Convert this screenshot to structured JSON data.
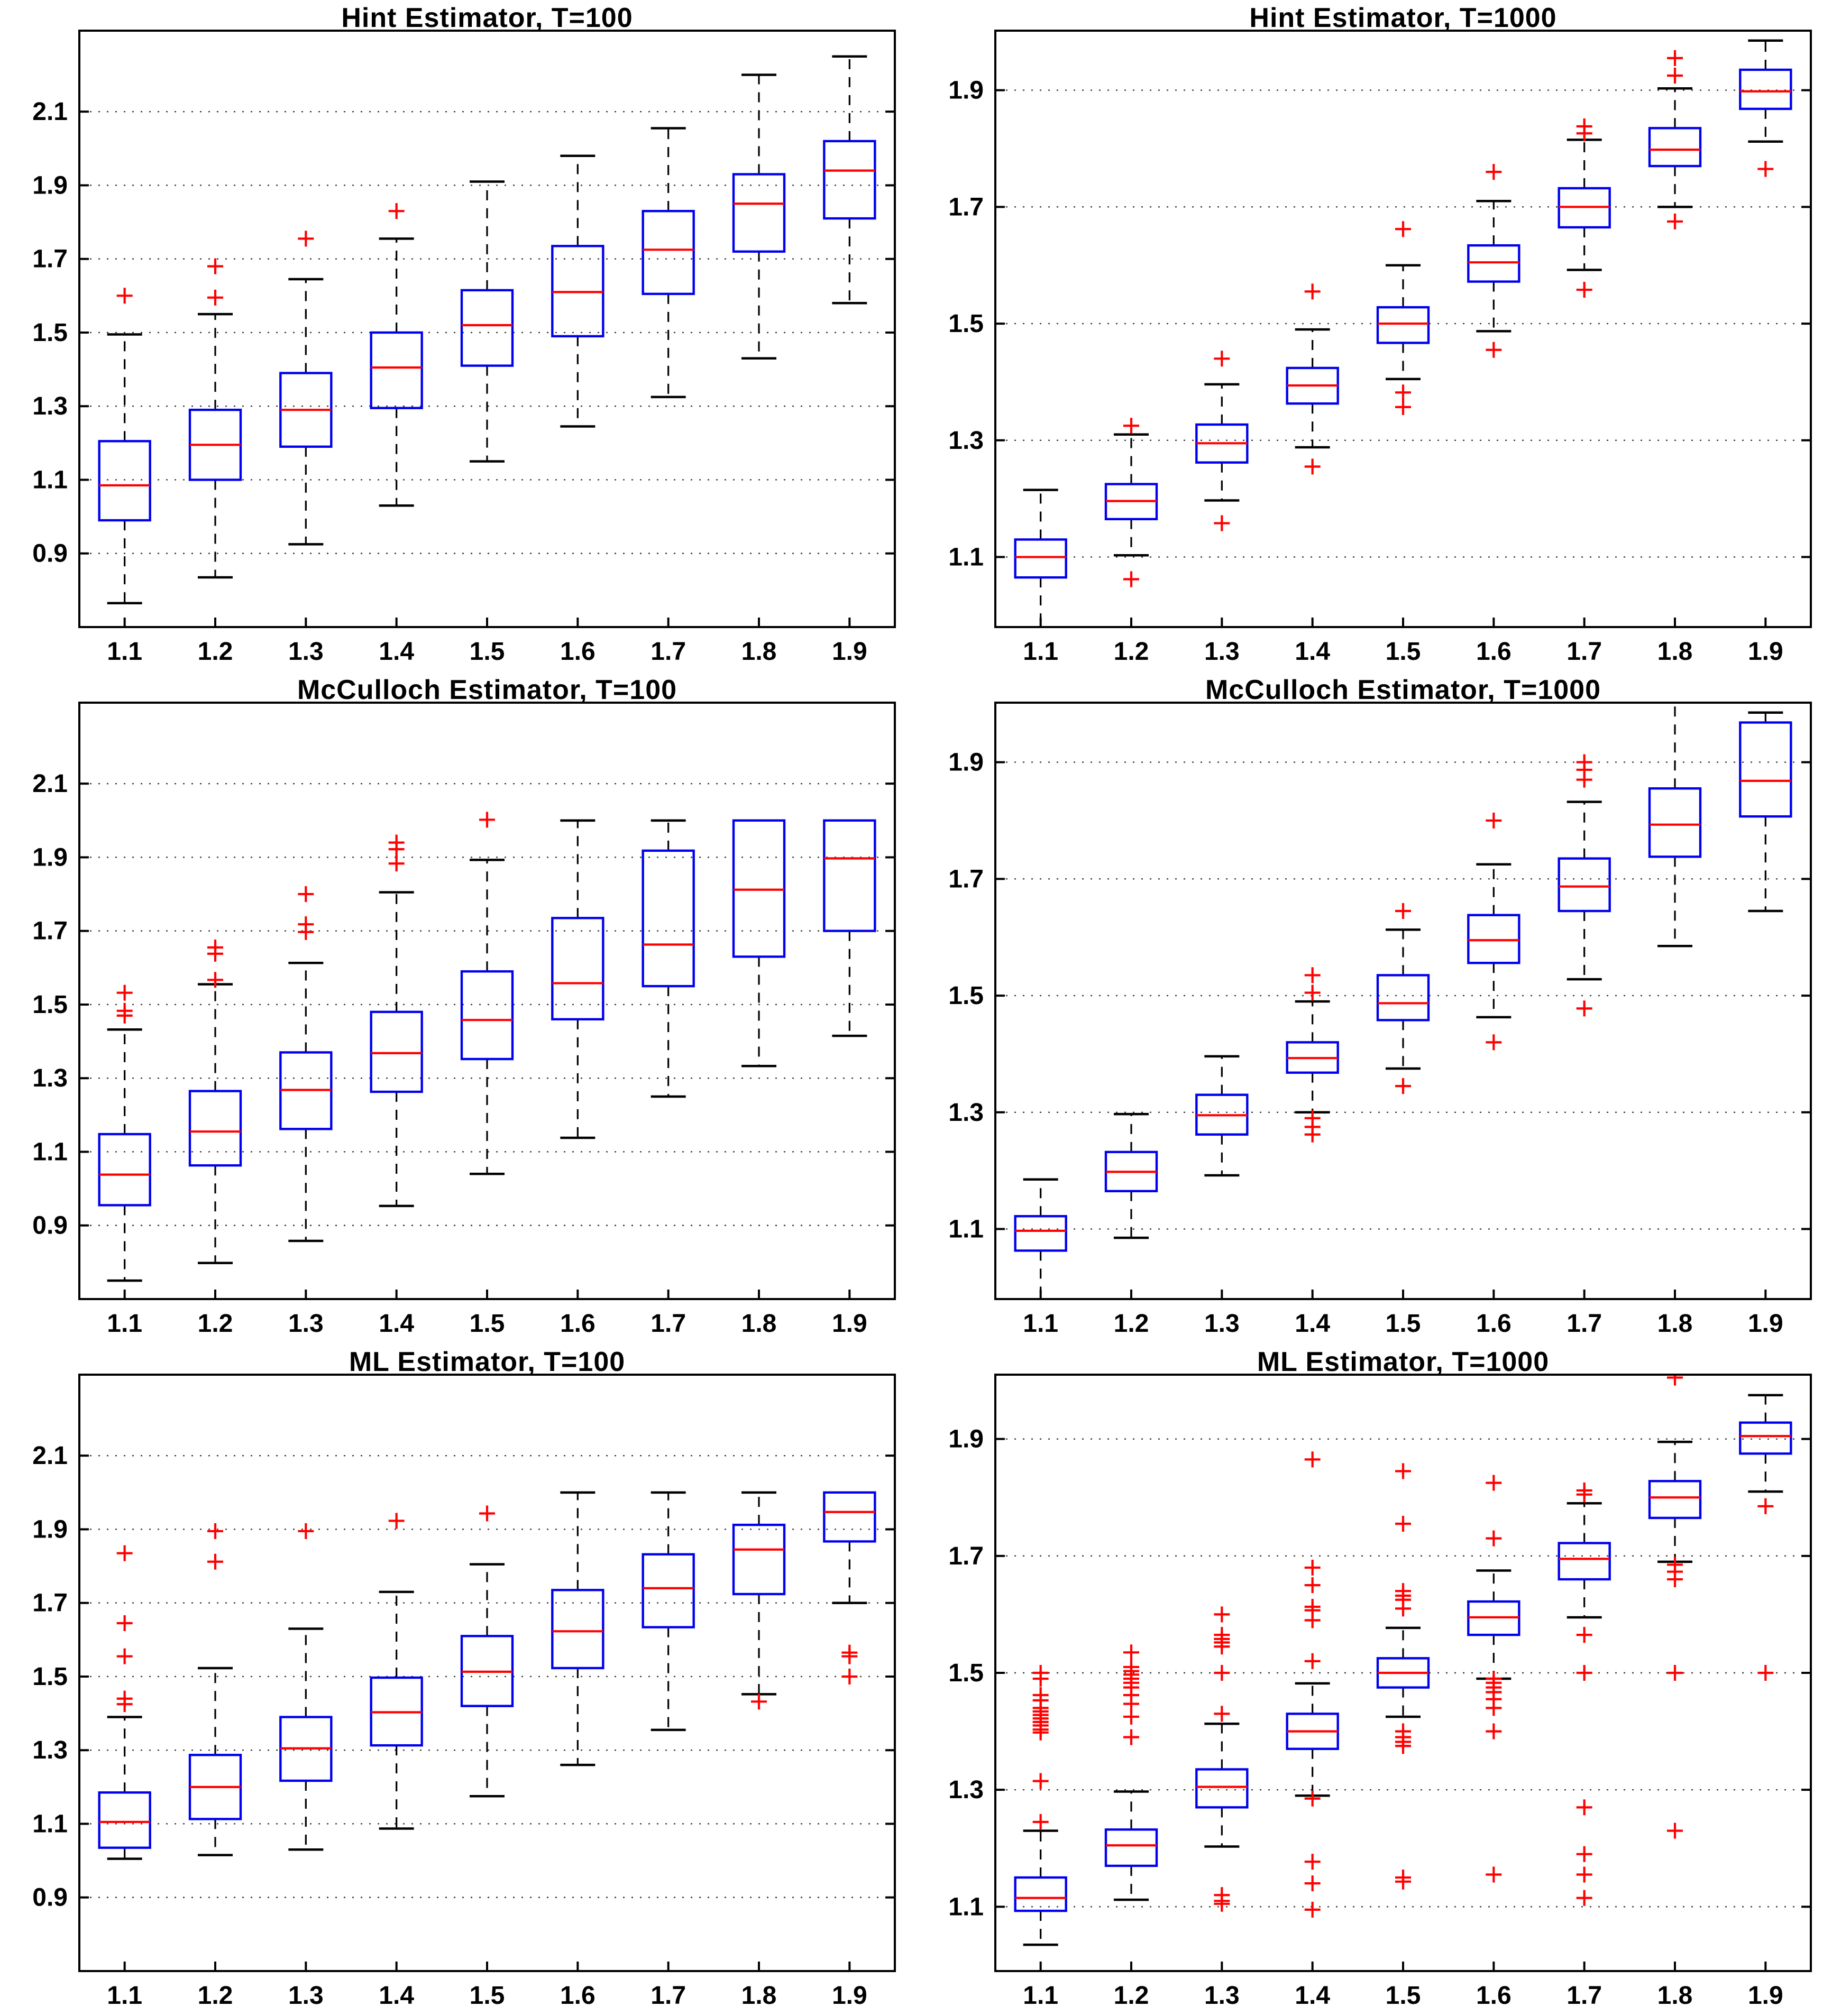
{
  "page": {
    "background": "#ffffff"
  },
  "style": {
    "box_color": "#0000ee",
    "median_color": "#ff0000",
    "outlier_color": "#ff0000",
    "outlier_marker": "+",
    "whisker_color": "#000000",
    "grid_color": "#3a3a3a",
    "frame_color": "#000000",
    "text_color": "#000000"
  },
  "chart_data": [
    {
      "type": "boxplot",
      "title": "Hint Estimator, T=100",
      "xlabel": "",
      "ylabel": "",
      "legend": "none",
      "grid": "horizontal-dotted",
      "x_categories": [
        "1.1",
        "1.2",
        "1.3",
        "1.4",
        "1.5",
        "1.6",
        "1.7",
        "1.8",
        "1.9"
      ],
      "ylim": [
        0.7,
        2.32
      ],
      "yticks": [
        0.9,
        1.1,
        1.3,
        1.5,
        1.7,
        1.9,
        2.1
      ],
      "ytick_labels": [
        "0.9",
        "1.1",
        "1.3",
        "1.5",
        "1.7",
        "1.9",
        "2.1"
      ],
      "boxes": [
        {
          "x": "1.1",
          "whisker_low": 0.765,
          "q1": 0.99,
          "median": 1.085,
          "q3": 1.205,
          "whisker_high": 1.495,
          "outliers": [
            1.6
          ]
        },
        {
          "x": "1.2",
          "whisker_low": 0.835,
          "q1": 1.1,
          "median": 1.195,
          "q3": 1.29,
          "whisker_high": 1.55,
          "outliers": [
            1.595,
            1.68
          ]
        },
        {
          "x": "1.3",
          "whisker_low": 0.925,
          "q1": 1.19,
          "median": 1.29,
          "q3": 1.39,
          "whisker_high": 1.645,
          "outliers": [
            1.755
          ]
        },
        {
          "x": "1.4",
          "whisker_low": 1.03,
          "q1": 1.295,
          "median": 1.405,
          "q3": 1.5,
          "whisker_high": 1.755,
          "outliers": [
            1.83
          ]
        },
        {
          "x": "1.5",
          "whisker_low": 1.15,
          "q1": 1.41,
          "median": 1.52,
          "q3": 1.615,
          "whisker_high": 1.91,
          "outliers": []
        },
        {
          "x": "1.6",
          "whisker_low": 1.245,
          "q1": 1.49,
          "median": 1.61,
          "q3": 1.735,
          "whisker_high": 1.98,
          "outliers": []
        },
        {
          "x": "1.7",
          "whisker_low": 1.325,
          "q1": 1.605,
          "median": 1.725,
          "q3": 1.83,
          "whisker_high": 2.055,
          "outliers": []
        },
        {
          "x": "1.8",
          "whisker_low": 1.43,
          "q1": 1.72,
          "median": 1.85,
          "q3": 1.93,
          "whisker_high": 2.2,
          "outliers": []
        },
        {
          "x": "1.9",
          "whisker_low": 1.58,
          "q1": 1.81,
          "median": 1.94,
          "q3": 2.02,
          "whisker_high": 2.25,
          "outliers": []
        }
      ]
    },
    {
      "type": "boxplot",
      "title": "Hint Estimator, T=1000",
      "xlabel": "",
      "ylabel": "",
      "legend": "none",
      "grid": "horizontal-dotted",
      "x_categories": [
        "1.1",
        "1.2",
        "1.3",
        "1.4",
        "1.5",
        "1.6",
        "1.7",
        "1.8",
        "1.9"
      ],
      "ylim": [
        0.98,
        2.002
      ],
      "yticks": [
        1.1,
        1.3,
        1.5,
        1.7,
        1.9
      ],
      "ytick_labels": [
        "1.1",
        "1.3",
        "1.5",
        "1.7",
        "1.9"
      ],
      "boxes": [
        {
          "x": "1.1",
          "whisker_low": 0.955,
          "q1": 1.065,
          "median": 1.1,
          "q3": 1.13,
          "whisker_high": 1.215,
          "outliers": []
        },
        {
          "x": "1.2",
          "whisker_low": 1.103,
          "q1": 1.165,
          "median": 1.196,
          "q3": 1.225,
          "whisker_high": 1.31,
          "outliers": [
            1.325,
            1.062
          ]
        },
        {
          "x": "1.3",
          "whisker_low": 1.197,
          "q1": 1.262,
          "median": 1.295,
          "q3": 1.327,
          "whisker_high": 1.396,
          "outliers": [
            1.44,
            1.158
          ]
        },
        {
          "x": "1.4",
          "whisker_low": 1.288,
          "q1": 1.363,
          "median": 1.394,
          "q3": 1.424,
          "whisker_high": 1.49,
          "outliers": [
            1.555,
            1.255
          ]
        },
        {
          "x": "1.5",
          "whisker_low": 1.405,
          "q1": 1.467,
          "median": 1.5,
          "q3": 1.528,
          "whisker_high": 1.6,
          "outliers": [
            1.662,
            1.382,
            1.357
          ]
        },
        {
          "x": "1.6",
          "whisker_low": 1.487,
          "q1": 1.572,
          "median": 1.605,
          "q3": 1.634,
          "whisker_high": 1.71,
          "outliers": [
            1.76,
            1.455
          ]
        },
        {
          "x": "1.7",
          "whisker_low": 1.592,
          "q1": 1.665,
          "median": 1.7,
          "q3": 1.732,
          "whisker_high": 1.815,
          "outliers": [
            1.838,
            1.826,
            1.558
          ]
        },
        {
          "x": "1.8",
          "whisker_low": 1.7,
          "q1": 1.77,
          "median": 1.798,
          "q3": 1.835,
          "whisker_high": 1.903,
          "outliers": [
            1.955,
            1.925,
            1.675
          ]
        },
        {
          "x": "1.9",
          "whisker_low": 1.812,
          "q1": 1.868,
          "median": 1.898,
          "q3": 1.935,
          "whisker_high": 1.985,
          "outliers": [
            1.765
          ]
        }
      ]
    },
    {
      "type": "boxplot",
      "title": "McCulloch Estimator, T=100",
      "xlabel": "",
      "ylabel": "",
      "legend": "none",
      "grid": "horizontal-dotted",
      "x_categories": [
        "1.1",
        "1.2",
        "1.3",
        "1.4",
        "1.5",
        "1.6",
        "1.7",
        "1.8",
        "1.9"
      ],
      "ylim": [
        0.7,
        2.32
      ],
      "yticks": [
        0.9,
        1.1,
        1.3,
        1.5,
        1.7,
        1.9,
        2.1
      ],
      "ytick_labels": [
        "0.9",
        "1.1",
        "1.3",
        "1.5",
        "1.7",
        "1.9",
        "2.1"
      ],
      "boxes": [
        {
          "x": "1.1",
          "whisker_low": 0.75,
          "q1": 0.955,
          "median": 1.038,
          "q3": 1.148,
          "whisker_high": 1.432,
          "outliers": [
            1.47,
            1.483,
            1.532
          ]
        },
        {
          "x": "1.2",
          "whisker_low": 0.798,
          "q1": 1.063,
          "median": 1.155,
          "q3": 1.265,
          "whisker_high": 1.555,
          "outliers": [
            1.567,
            1.638,
            1.655
          ]
        },
        {
          "x": "1.3",
          "whisker_low": 0.858,
          "q1": 1.162,
          "median": 1.268,
          "q3": 1.37,
          "whisker_high": 1.613,
          "outliers": [
            1.697,
            1.718,
            1.8
          ]
        },
        {
          "x": "1.4",
          "whisker_low": 0.953,
          "q1": 1.263,
          "median": 1.368,
          "q3": 1.48,
          "whisker_high": 1.805,
          "outliers": [
            1.883,
            1.922,
            1.94
          ]
        },
        {
          "x": "1.5",
          "whisker_low": 1.04,
          "q1": 1.352,
          "median": 1.458,
          "q3": 1.59,
          "whisker_high": 1.893,
          "outliers": [
            2.002
          ]
        },
        {
          "x": "1.6",
          "whisker_low": 1.138,
          "q1": 1.46,
          "median": 1.558,
          "q3": 1.735,
          "whisker_high": 2.0,
          "outliers": []
        },
        {
          "x": "1.7",
          "whisker_low": 1.25,
          "q1": 1.55,
          "median": 1.663,
          "q3": 1.918,
          "whisker_high": 2.0,
          "outliers": []
        },
        {
          "x": "1.8",
          "whisker_low": 1.333,
          "q1": 1.63,
          "median": 1.812,
          "q3": 2.0,
          "whisker_high": 2.0,
          "outliers": []
        },
        {
          "x": "1.9",
          "whisker_low": 1.415,
          "q1": 1.7,
          "median": 1.897,
          "q3": 2.0,
          "whisker_high": 2.0,
          "outliers": []
        }
      ]
    },
    {
      "type": "boxplot",
      "title": "McCulloch Estimator, T=1000",
      "xlabel": "",
      "ylabel": "",
      "legend": "none",
      "grid": "horizontal-dotted",
      "x_categories": [
        "1.1",
        "1.2",
        "1.3",
        "1.4",
        "1.5",
        "1.6",
        "1.7",
        "1.8",
        "1.9"
      ],
      "ylim": [
        0.98,
        2.002
      ],
      "yticks": [
        1.1,
        1.3,
        1.5,
        1.7,
        1.9
      ],
      "ytick_labels": [
        "1.1",
        "1.3",
        "1.5",
        "1.7",
        "1.9"
      ],
      "boxes": [
        {
          "x": "1.1",
          "whisker_low": 0.95,
          "q1": 1.063,
          "median": 1.097,
          "q3": 1.122,
          "whisker_high": 1.185,
          "outliers": []
        },
        {
          "x": "1.2",
          "whisker_low": 1.085,
          "q1": 1.165,
          "median": 1.198,
          "q3": 1.232,
          "whisker_high": 1.297,
          "outliers": []
        },
        {
          "x": "1.3",
          "whisker_low": 1.192,
          "q1": 1.262,
          "median": 1.295,
          "q3": 1.33,
          "whisker_high": 1.396,
          "outliers": []
        },
        {
          "x": "1.4",
          "whisker_low": 1.3,
          "q1": 1.368,
          "median": 1.393,
          "q3": 1.42,
          "whisker_high": 1.49,
          "outliers": [
            1.535,
            1.505,
            1.29,
            1.275,
            1.262
          ]
        },
        {
          "x": "1.5",
          "whisker_low": 1.375,
          "q1": 1.458,
          "median": 1.487,
          "q3": 1.535,
          "whisker_high": 1.613,
          "outliers": [
            1.645,
            1.345
          ]
        },
        {
          "x": "1.6",
          "whisker_low": 1.463,
          "q1": 1.556,
          "median": 1.595,
          "q3": 1.638,
          "whisker_high": 1.725,
          "outliers": [
            1.8,
            1.42
          ]
        },
        {
          "x": "1.7",
          "whisker_low": 1.528,
          "q1": 1.645,
          "median": 1.687,
          "q3": 1.735,
          "whisker_high": 1.832,
          "outliers": [
            1.9,
            1.887,
            1.87,
            1.478
          ]
        },
        {
          "x": "1.8",
          "whisker_low": 1.585,
          "q1": 1.738,
          "median": 1.793,
          "q3": 1.855,
          "whisker_high": 2.02,
          "outliers": []
        },
        {
          "x": "1.9",
          "whisker_low": 1.645,
          "q1": 1.807,
          "median": 1.868,
          "q3": 1.968,
          "whisker_high": 1.985,
          "outliers": []
        }
      ]
    },
    {
      "type": "boxplot",
      "title": "ML Estimator, T=100",
      "xlabel": "",
      "ylabel": "",
      "legend": "none",
      "grid": "horizontal-dotted",
      "x_categories": [
        "1.1",
        "1.2",
        "1.3",
        "1.4",
        "1.5",
        "1.6",
        "1.7",
        "1.8",
        "1.9"
      ],
      "ylim": [
        0.7,
        2.32
      ],
      "yticks": [
        0.9,
        1.1,
        1.3,
        1.5,
        1.7,
        1.9,
        2.1
      ],
      "ytick_labels": [
        "0.9",
        "1.1",
        "1.3",
        "1.5",
        "1.7",
        "1.9",
        "2.1"
      ],
      "boxes": [
        {
          "x": "1.1",
          "whisker_low": 1.005,
          "q1": 1.035,
          "median": 1.105,
          "q3": 1.185,
          "whisker_high": 1.39,
          "outliers": [
            1.425,
            1.44,
            1.555,
            1.645,
            1.835
          ]
        },
        {
          "x": "1.2",
          "whisker_low": 1.015,
          "q1": 1.113,
          "median": 1.2,
          "q3": 1.287,
          "whisker_high": 1.523,
          "outliers": [
            1.812,
            1.895
          ]
        },
        {
          "x": "1.3",
          "whisker_low": 1.03,
          "q1": 1.217,
          "median": 1.305,
          "q3": 1.39,
          "whisker_high": 1.63,
          "outliers": [
            1.895
          ]
        },
        {
          "x": "1.4",
          "whisker_low": 1.087,
          "q1": 1.313,
          "median": 1.403,
          "q3": 1.497,
          "whisker_high": 1.73,
          "outliers": [
            1.923
          ]
        },
        {
          "x": "1.5",
          "whisker_low": 1.175,
          "q1": 1.42,
          "median": 1.513,
          "q3": 1.61,
          "whisker_high": 1.805,
          "outliers": [
            1.943
          ]
        },
        {
          "x": "1.6",
          "whisker_low": 1.26,
          "q1": 1.523,
          "median": 1.623,
          "q3": 1.735,
          "whisker_high": 2.0,
          "outliers": []
        },
        {
          "x": "1.7",
          "whisker_low": 1.355,
          "q1": 1.634,
          "median": 1.74,
          "q3": 1.832,
          "whisker_high": 2.0,
          "outliers": []
        },
        {
          "x": "1.8",
          "whisker_low": 1.452,
          "q1": 1.724,
          "median": 1.845,
          "q3": 1.912,
          "whisker_high": 2.0,
          "outliers": [
            1.432
          ]
        },
        {
          "x": "1.9",
          "whisker_low": 1.7,
          "q1": 1.867,
          "median": 1.947,
          "q3": 2.0,
          "whisker_high": 2.0,
          "outliers": [
            1.565,
            1.555,
            1.5
          ]
        }
      ]
    },
    {
      "type": "boxplot",
      "title": "ML Estimator, T=1000",
      "xlabel": "",
      "ylabel": "",
      "legend": "none",
      "grid": "horizontal-dotted",
      "x_categories": [
        "1.1",
        "1.2",
        "1.3",
        "1.4",
        "1.5",
        "1.6",
        "1.7",
        "1.8",
        "1.9"
      ],
      "ylim": [
        0.99,
        2.01
      ],
      "yticks": [
        1.1,
        1.3,
        1.5,
        1.7,
        1.9
      ],
      "ytick_labels": [
        "1.1",
        "1.3",
        "1.5",
        "1.7",
        "1.9"
      ],
      "boxes": [
        {
          "x": "1.1",
          "whisker_low": 1.035,
          "q1": 1.093,
          "median": 1.115,
          "q3": 1.15,
          "whisker_high": 1.23,
          "outliers": [
            1.245,
            1.315,
            1.398,
            1.403,
            1.41,
            1.416,
            1.422,
            1.428,
            1.434,
            1.44,
            1.453,
            1.462,
            1.49,
            1.5
          ]
        },
        {
          "x": "1.2",
          "whisker_low": 1.112,
          "q1": 1.17,
          "median": 1.205,
          "q3": 1.232,
          "whisker_high": 1.297,
          "outliers": [
            1.39,
            1.425,
            1.447,
            1.462,
            1.475,
            1.483,
            1.49,
            1.497,
            1.503,
            1.51,
            1.535
          ]
        },
        {
          "x": "1.3",
          "whisker_low": 1.203,
          "q1": 1.27,
          "median": 1.305,
          "q3": 1.335,
          "whisker_high": 1.413,
          "outliers": [
            1.105,
            1.11,
            1.12,
            1.43,
            1.5,
            1.545,
            1.552,
            1.558,
            1.565,
            1.6
          ]
        },
        {
          "x": "1.4",
          "whisker_low": 1.29,
          "q1": 1.37,
          "median": 1.4,
          "q3": 1.43,
          "whisker_high": 1.482,
          "outliers": [
            1.095,
            1.14,
            1.177,
            1.285,
            1.52,
            1.59,
            1.607,
            1.613,
            1.65,
            1.68,
            1.865
          ]
        },
        {
          "x": "1.5",
          "whisker_low": 1.425,
          "q1": 1.475,
          "median": 1.5,
          "q3": 1.525,
          "whisker_high": 1.577,
          "outliers": [
            1.143,
            1.15,
            1.375,
            1.382,
            1.39,
            1.4,
            1.61,
            1.625,
            1.632,
            1.64,
            1.755,
            1.845
          ]
        },
        {
          "x": "1.6",
          "whisker_low": 1.49,
          "q1": 1.565,
          "median": 1.595,
          "q3": 1.622,
          "whisker_high": 1.675,
          "outliers": [
            1.155,
            1.4,
            1.44,
            1.455,
            1.467,
            1.475,
            1.483,
            1.49,
            1.73,
            1.825
          ]
        },
        {
          "x": "1.7",
          "whisker_low": 1.595,
          "q1": 1.66,
          "median": 1.695,
          "q3": 1.722,
          "whisker_high": 1.79,
          "outliers": [
            1.115,
            1.155,
            1.19,
            1.27,
            1.5,
            1.565,
            1.805,
            1.812
          ]
        },
        {
          "x": "1.8",
          "whisker_low": 1.69,
          "q1": 1.765,
          "median": 1.8,
          "q3": 1.828,
          "whisker_high": 1.895,
          "outliers": [
            1.23,
            1.5,
            1.66,
            1.673,
            1.685,
            2.005
          ]
        },
        {
          "x": "1.9",
          "whisker_low": 1.81,
          "q1": 1.875,
          "median": 1.905,
          "q3": 1.928,
          "whisker_high": 1.975,
          "outliers": [
            1.5,
            1.785
          ]
        }
      ]
    }
  ]
}
